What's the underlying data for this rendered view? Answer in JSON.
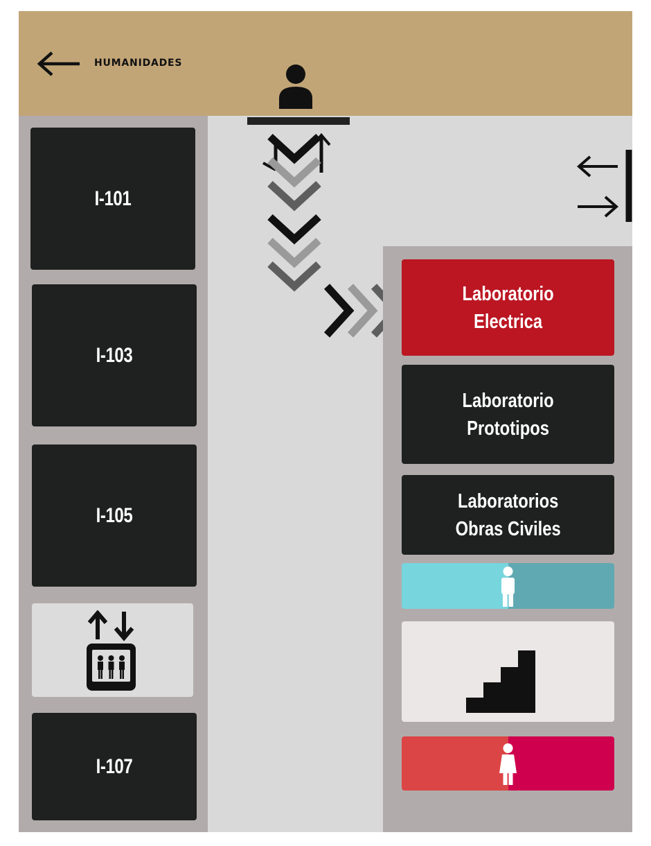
{
  "header": {
    "title": "HUMANIDADES",
    "back_icon": "left-arrow-icon",
    "background_color": "#c2a577"
  },
  "rooms": [
    {
      "label": "I-101"
    },
    {
      "label": "I-103"
    },
    {
      "label": "I-105"
    },
    {
      "label": "I-107"
    }
  ],
  "labs": [
    {
      "label": "Laboratorio\nElectrica",
      "color": "#bb1622",
      "highlighted": true
    },
    {
      "label": "Laboratorio\nPrototipos",
      "color": "#1f2121"
    },
    {
      "label": "Laboratorios\nObras Civiles",
      "color": "#1f2121"
    }
  ],
  "facilities": {
    "elevator_icon": "elevator-icon",
    "stairs_icon": "stairs-icon",
    "restroom_1_icon": "person-icon",
    "restroom_2_icon": "person-icon",
    "colors": {
      "restroom_1": [
        "#77d5de",
        "#61a9b2"
      ],
      "restroom_2": [
        "#dc4545",
        "#cf004d"
      ]
    }
  },
  "icons": {
    "entrance": "person-icon",
    "route": "chevron-down-icon",
    "direction": "chevron-right-icon",
    "exit": "in-out-arrows-icon",
    "up": "up-arrow-icon"
  }
}
